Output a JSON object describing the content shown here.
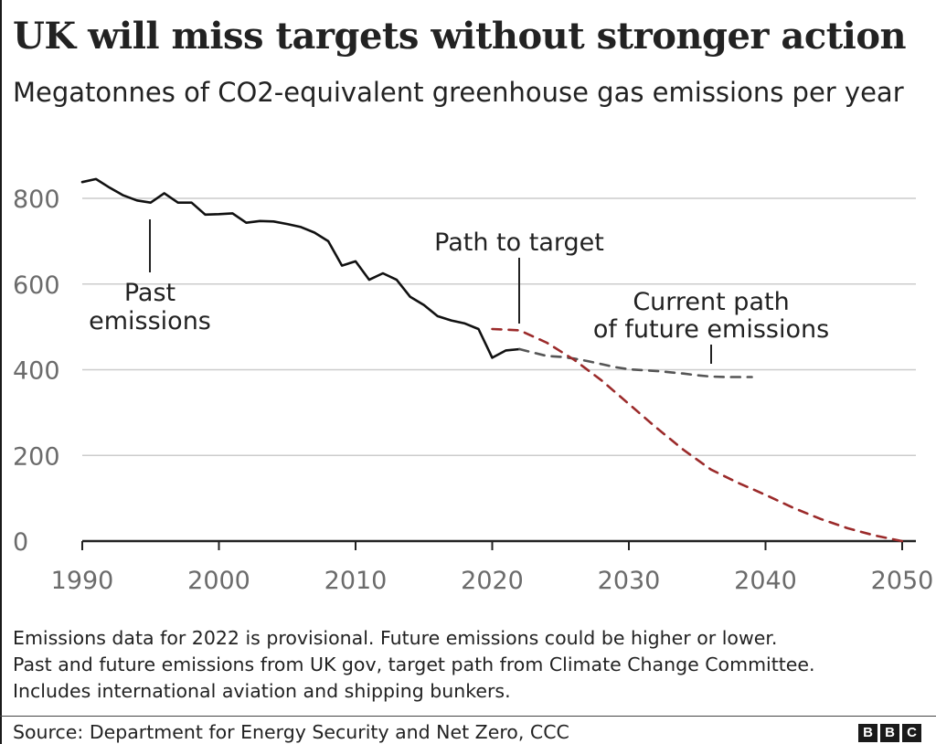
{
  "title": "UK will miss targets without stronger action",
  "subtitle": "Megatonnes of CO2-equivalent greenhouse gas emissions per year",
  "colors": {
    "past": "#111111",
    "current_path": "#555555",
    "target_path": "#9b2a2a",
    "gridline": "#cccccc",
    "baseline": "#222222",
    "tick_text": "#6b6b6b"
  },
  "chart_data": {
    "type": "line",
    "title": "UK will miss targets without stronger action",
    "ylabel": "Megatonnes of CO2-equivalent greenhouse gas emissions per year",
    "xlabel": "",
    "xlim": [
      1990,
      2050
    ],
    "ylim": [
      0,
      800
    ],
    "x_ticks": [
      1990,
      2000,
      2010,
      2020,
      2030,
      2040,
      2050
    ],
    "y_ticks": [
      0,
      200,
      400,
      600,
      800
    ],
    "grid": true,
    "series": [
      {
        "name": "Past emissions",
        "style": "solid",
        "x": [
          1990,
          1991,
          1992,
          1993,
          1994,
          1995,
          1996,
          1997,
          1998,
          1999,
          2000,
          2001,
          2002,
          2003,
          2004,
          2005,
          2006,
          2007,
          2008,
          2009,
          2010,
          2011,
          2012,
          2013,
          2014,
          2015,
          2016,
          2017,
          2018,
          2019,
          2020,
          2021,
          2022
        ],
        "y": [
          838,
          845,
          825,
          807,
          795,
          790,
          812,
          790,
          790,
          762,
          763,
          765,
          743,
          747,
          746,
          740,
          733,
          720,
          700,
          643,
          653,
          610,
          625,
          610,
          570,
          551,
          525,
          515,
          508,
          495,
          428,
          445,
          448
        ]
      },
      {
        "name": "Current path of future emissions",
        "style": "dashed",
        "x": [
          2022,
          2023,
          2024,
          2025,
          2026,
          2027,
          2028,
          2029,
          2030,
          2031,
          2032,
          2033,
          2034,
          2035,
          2036,
          2037,
          2038,
          2039
        ],
        "y": [
          448,
          440,
          432,
          430,
          426,
          420,
          413,
          406,
          401,
          399,
          397,
          394,
          391,
          387,
          384,
          383,
          383,
          383
        ]
      },
      {
        "name": "Path to target",
        "style": "dashed",
        "x": [
          2020,
          2022,
          2024,
          2026,
          2028,
          2030,
          2032,
          2034,
          2036,
          2038,
          2040,
          2042,
          2044,
          2046,
          2048,
          2050
        ],
        "y": [
          495,
          492,
          463,
          423,
          375,
          320,
          265,
          213,
          167,
          136,
          108,
          78,
          52,
          30,
          13,
          0
        ]
      }
    ],
    "annotations": [
      {
        "text": [
          "Past",
          "emissions"
        ]
      },
      {
        "text": [
          "Path to target"
        ]
      },
      {
        "text": [
          "Current path",
          "of future emissions"
        ]
      }
    ]
  },
  "notes": [
    "Emissions data for 2022 is provisional. Future emissions could be higher or lower.",
    "Past and future emissions from UK gov, target path from Climate Change Committee.",
    "Includes international aviation and shipping bunkers."
  ],
  "source": "Source: Department for Energy Security and Net Zero, CCC",
  "logo_letters": [
    "B",
    "B",
    "C"
  ]
}
